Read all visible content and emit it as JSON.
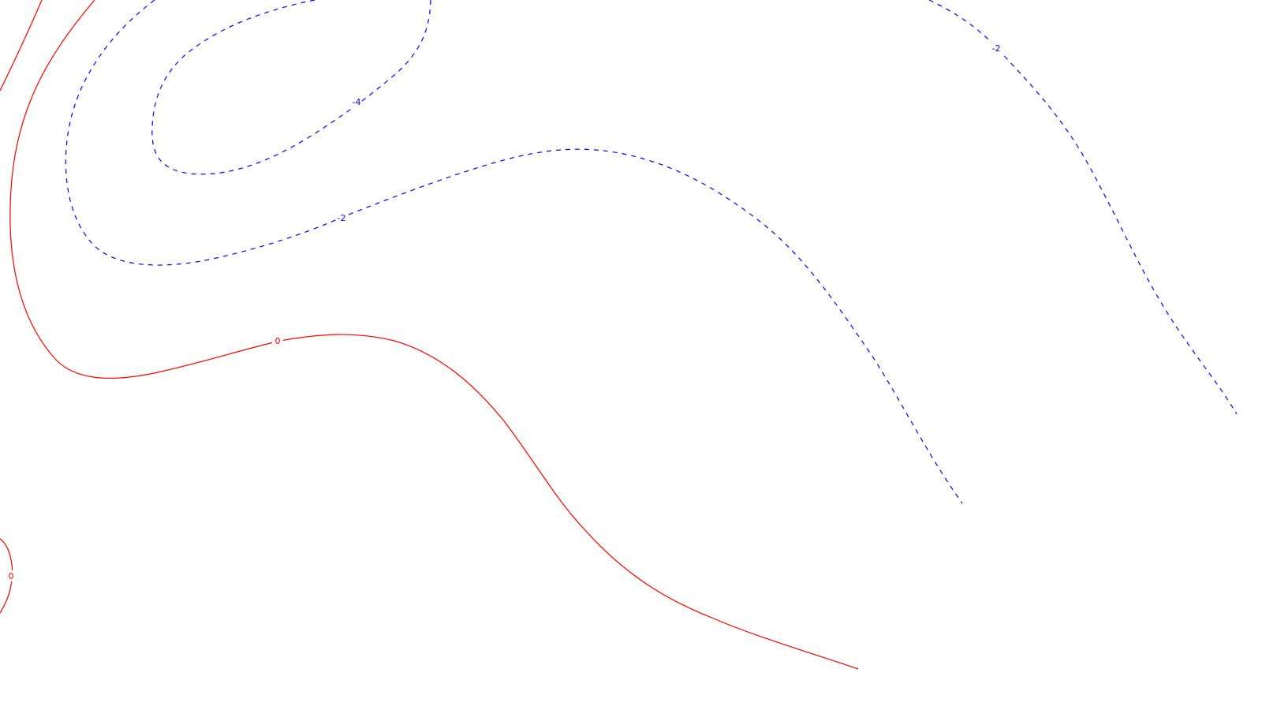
{
  "chart_data": {
    "type": "contour",
    "title": "",
    "xlabel": "",
    "ylabel": "",
    "grid": false,
    "legend": "none",
    "contour_lines": [
      {
        "id": "c0-main",
        "level": 0,
        "label": "0",
        "color": "#ff0000",
        "dash": "solid"
      },
      {
        "id": "c0-top-left",
        "level": 0,
        "label": "",
        "color": "#ff0000",
        "dash": "solid"
      },
      {
        "id": "c0-bottom-left",
        "level": 0,
        "label": "0",
        "color": "#ff0000",
        "dash": "solid"
      },
      {
        "id": "c-4",
        "level": -4,
        "label": "-4",
        "color": "#0000ff",
        "dash": "dashed"
      },
      {
        "id": "c-2-left",
        "level": -2,
        "label": "-2",
        "color": "#0000ff",
        "dash": "dashed"
      },
      {
        "id": "c-2-right",
        "level": -2,
        "label": "-2",
        "color": "#0000ff",
        "dash": "dashed"
      }
    ]
  }
}
